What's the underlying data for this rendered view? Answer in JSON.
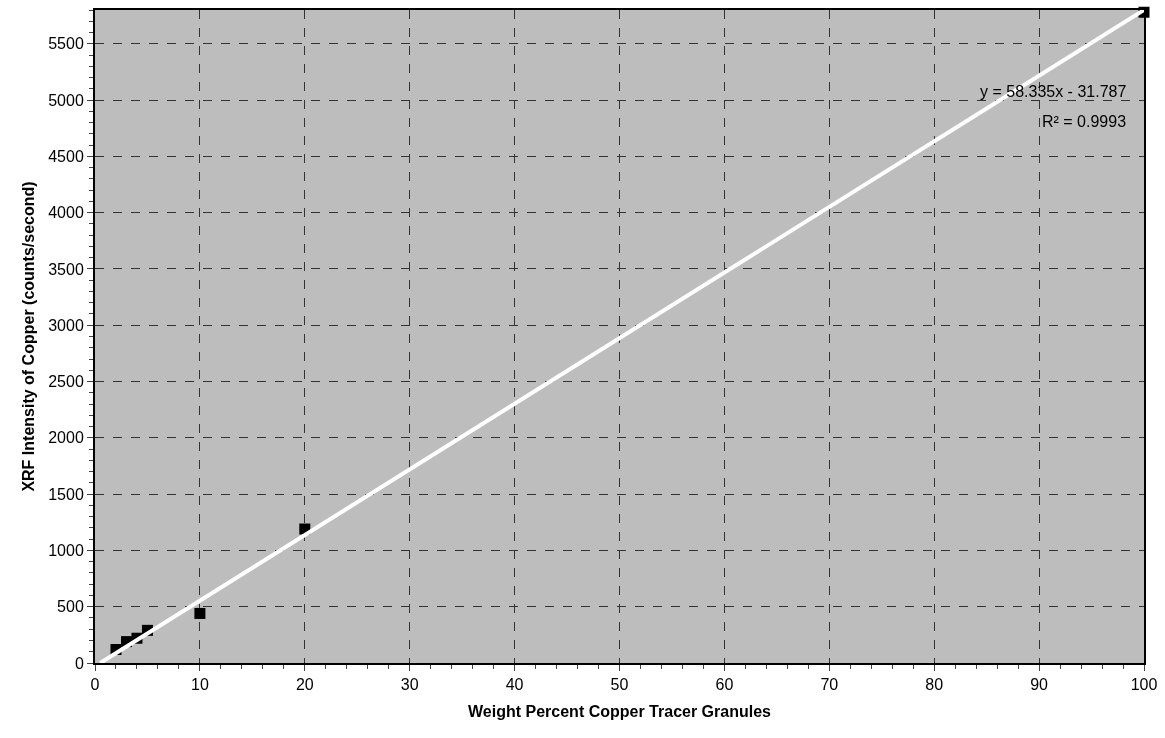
{
  "chart_data": {
    "type": "scatter",
    "xlabel": "Weight Percent Copper Tracer Granules",
    "ylabel": "XRF Intensity of Copper (counts/second)",
    "xlim": [
      0,
      100
    ],
    "xticks": [
      0,
      10,
      20,
      30,
      40,
      50,
      60,
      70,
      80,
      90,
      100
    ],
    "ylim": [
      0,
      5800
    ],
    "yticks": [
      0,
      500,
      1000,
      1500,
      2000,
      2500,
      3000,
      3500,
      4000,
      4500,
      5000,
      5500
    ],
    "grid": true,
    "series": [
      {
        "type": "scatter",
        "color": "#000000",
        "marker": "square",
        "x": [
          2,
          3,
          4,
          5,
          10,
          20,
          100
        ],
        "values": [
          120,
          190,
          220,
          290,
          440,
          1190,
          5780
        ]
      },
      {
        "type": "line",
        "color": "#ffffff",
        "marker": "none",
        "line_style": "solid",
        "x": [
          0.5,
          100
        ],
        "values": [
          0,
          5800
        ]
      }
    ],
    "annotations": [
      "y = 58.335x - 31.787",
      "R² = 0.9993"
    ]
  }
}
